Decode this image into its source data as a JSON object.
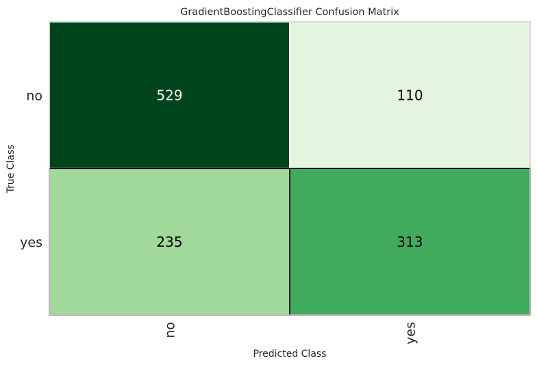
{
  "chart_data": {
    "type": "heatmap",
    "title": "GradientBoostingClassifier Confusion Matrix",
    "xlabel": "Predicted Class",
    "ylabel": "True Class",
    "x_categories": [
      "no",
      "yes"
    ],
    "y_categories": [
      "no",
      "yes"
    ],
    "values": [
      [
        529,
        110
      ],
      [
        235,
        313
      ]
    ],
    "colors": {
      "cell_no_no": "#00441b",
      "cell_no_yes": "#e5f5e0",
      "cell_yes_no": "#a1d99b",
      "cell_yes_yes": "#41ab5d",
      "text_dark_bg": "#ffffff",
      "text_light_bg": "#000000",
      "frame": "#cccccc"
    },
    "grid": false,
    "legend": "none"
  }
}
